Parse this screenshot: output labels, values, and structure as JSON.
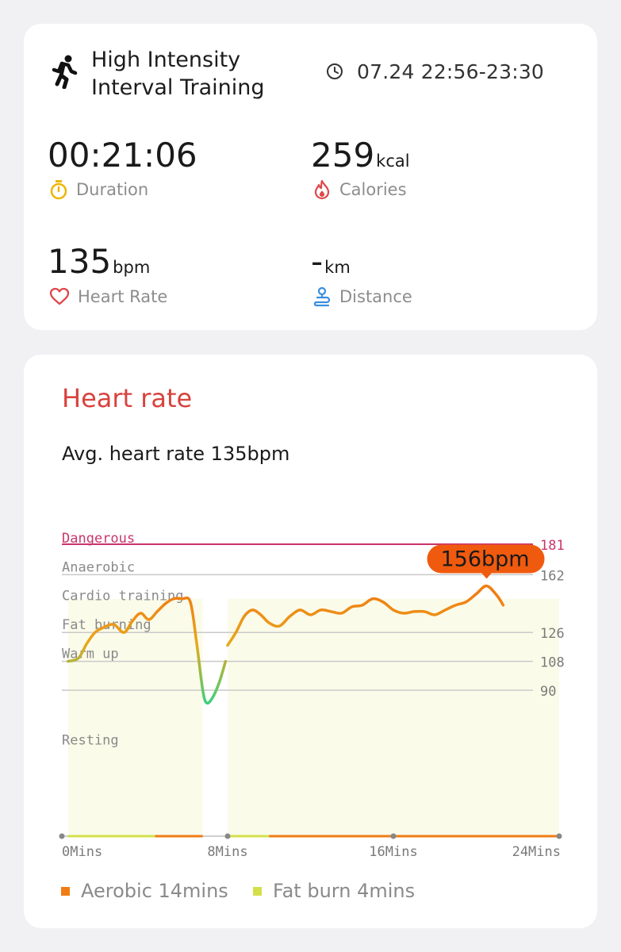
{
  "workout": {
    "title": "High Intensity Interval Training",
    "time_range": "07.24 22:56-23:30"
  },
  "stats": {
    "duration": {
      "value": "00:21:06",
      "label": "Duration"
    },
    "calories": {
      "value": "259",
      "unit": "kcal",
      "label": "Calories"
    },
    "heart_rate": {
      "value": "135",
      "unit": "bpm",
      "label": "Heart Rate"
    },
    "distance": {
      "value": "-",
      "unit": "km",
      "label": "Distance"
    }
  },
  "heart_rate_card": {
    "title": "Heart rate",
    "average_text": "Avg. heart rate 135bpm",
    "peak_label": "156bpm"
  },
  "colors": {
    "accent_red": "#d8423d",
    "orange": "#f07d13",
    "green": "#3fd07c",
    "fat_burn": "#d4e04a",
    "dangerous": "#c9356c",
    "shade": "#fbfbea"
  },
  "chart_data": {
    "type": "line",
    "x_unit": "mins",
    "y_unit": "bpm",
    "xlim": [
      0,
      24
    ],
    "ylim": [
      40,
      190
    ],
    "x_ticks": [
      {
        "value": 0,
        "label": "0Mins"
      },
      {
        "value": 8,
        "label": "8Mins"
      },
      {
        "value": 16,
        "label": "16Mins"
      },
      {
        "value": 24,
        "label": "24Mins"
      }
    ],
    "zones": [
      {
        "name": "Dangerous",
        "threshold": 181,
        "label": "181"
      },
      {
        "name": "Anaerobic",
        "threshold": 162,
        "label": "162"
      },
      {
        "name": "Cardio training",
        "threshold": null,
        "label": ""
      },
      {
        "name": "Fat burning",
        "threshold": 126,
        "label": "126"
      },
      {
        "name": "Warm up",
        "threshold": 108,
        "label": "108"
      },
      {
        "name": "Resting",
        "threshold": 90,
        "label": "90"
      }
    ],
    "zone_text_positions": [
      {
        "name": "Dangerous",
        "bpm": 185
      },
      {
        "name": "Anaerobic",
        "bpm": 167
      },
      {
        "name": "Cardio training",
        "bpm": 149
      },
      {
        "name": "Fat burning",
        "bpm": 131
      },
      {
        "name": "Warm up",
        "bpm": 113
      },
      {
        "name": "Resting",
        "bpm": 59
      }
    ],
    "series": [
      {
        "segments": [
          [
            [
              0.3,
              108
            ],
            [
              0.8,
              110
            ],
            [
              1.2,
              119
            ],
            [
              1.6,
              126
            ],
            [
              2.0,
              129
            ],
            [
              2.5,
              131
            ],
            [
              3.0,
              126
            ],
            [
              3.4,
              133
            ],
            [
              3.8,
              138
            ],
            [
              4.2,
              134
            ],
            [
              4.6,
              139
            ],
            [
              5.0,
              144
            ],
            [
              5.4,
              147
            ],
            [
              5.8,
              147
            ],
            [
              6.2,
              145
            ],
            [
              6.5,
              120
            ],
            [
              6.8,
              90
            ],
            [
              7.0,
              82
            ],
            [
              7.3,
              86
            ],
            [
              7.6,
              95
            ],
            [
              7.9,
              108
            ]
          ],
          [
            [
              8.0,
              118
            ],
            [
              8.4,
              126
            ],
            [
              8.8,
              136
            ],
            [
              9.2,
              140
            ],
            [
              9.6,
              137
            ],
            [
              10.0,
              132
            ],
            [
              10.5,
              130
            ],
            [
              11.0,
              136
            ],
            [
              11.5,
              140
            ],
            [
              12.0,
              137
            ],
            [
              12.5,
              140
            ],
            [
              13.0,
              139
            ],
            [
              13.5,
              138
            ],
            [
              14.0,
              142
            ],
            [
              14.5,
              143
            ],
            [
              15.0,
              147
            ],
            [
              15.5,
              145
            ],
            [
              16.0,
              140
            ],
            [
              16.5,
              138
            ],
            [
              17.0,
              139
            ],
            [
              17.5,
              139
            ],
            [
              18.0,
              137
            ],
            [
              18.5,
              140
            ],
            [
              19.0,
              143
            ],
            [
              19.5,
              145
            ],
            [
              20.0,
              150
            ],
            [
              20.5,
              155
            ],
            [
              21.0,
              149
            ],
            [
              21.3,
              143
            ]
          ]
        ]
      }
    ],
    "shaded_ranges": [
      [
        0.3,
        6.8
      ],
      [
        8.0,
        24.0
      ]
    ],
    "peak": {
      "x": 20.5,
      "y": 156,
      "label": "156bpm"
    },
    "legend": [
      {
        "name": "Aerobic 14mins",
        "color": "#f07d13"
      },
      {
        "name": "Fat burn 4mins",
        "color": "#d4e04a"
      }
    ],
    "zone_bar": [
      {
        "from": 0.3,
        "to": 4.5,
        "zone": "fat_burn"
      },
      {
        "from": 4.5,
        "to": 6.8,
        "zone": "aerobic"
      },
      {
        "from": 8.0,
        "to": 10.0,
        "zone": "fat_burn"
      },
      {
        "from": 10.0,
        "to": 24.0,
        "zone": "aerobic"
      }
    ]
  }
}
